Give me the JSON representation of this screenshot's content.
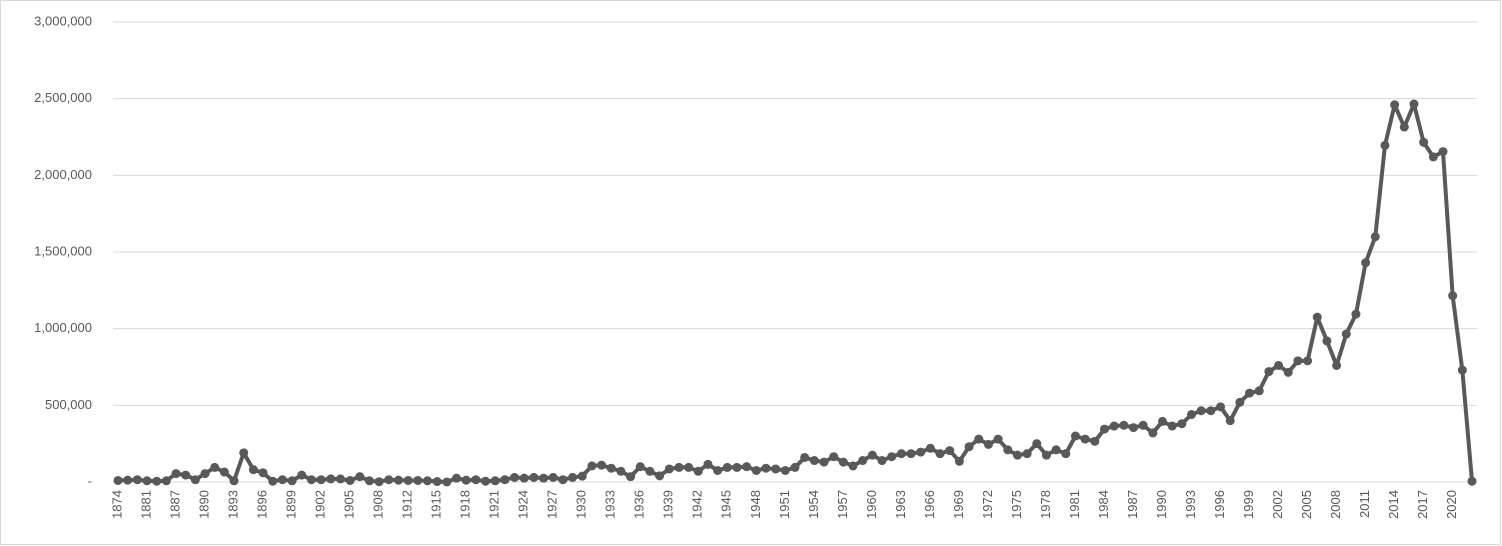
{
  "chart_data": {
    "type": "line",
    "categories": [
      "1874",
      null,
      null,
      "1881",
      null,
      null,
      "1887",
      null,
      null,
      "1890",
      null,
      null,
      "1893",
      null,
      null,
      "1896",
      null,
      null,
      "1899",
      null,
      null,
      "1902",
      null,
      null,
      "1905",
      null,
      null,
      "1908",
      null,
      null,
      "1912",
      null,
      null,
      "1915",
      null,
      null,
      "1918",
      null,
      null,
      "1921",
      null,
      null,
      "1924",
      null,
      null,
      "1927",
      null,
      null,
      "1930",
      null,
      null,
      "1933",
      null,
      null,
      "1936",
      null,
      null,
      "1939",
      null,
      null,
      "1942",
      null,
      null,
      "1945",
      null,
      null,
      "1948",
      null,
      null,
      "1951",
      null,
      null,
      "1954",
      null,
      null,
      "1957",
      null,
      null,
      "1960",
      null,
      null,
      "1963",
      null,
      null,
      "1966",
      null,
      null,
      "1969",
      null,
      null,
      "1972",
      null,
      null,
      "1975",
      null,
      null,
      "1978",
      null,
      null,
      "1981",
      null,
      null,
      "1984",
      null,
      null,
      "1987",
      null,
      null,
      "1990",
      null,
      null,
      "1993",
      null,
      null,
      "1996",
      null,
      null,
      "1999",
      null,
      null,
      "2002",
      null,
      null,
      "2005",
      null,
      null,
      "2008",
      null,
      null,
      "2011",
      null,
      null,
      "2014",
      null,
      null,
      "2017",
      null,
      null,
      "2020",
      null,
      null
    ],
    "values": [
      10000,
      12000,
      15000,
      8000,
      5000,
      8000,
      55000,
      45000,
      15000,
      55000,
      95000,
      65000,
      8000,
      190000,
      80000,
      60000,
      5000,
      15000,
      8000,
      45000,
      15000,
      15000,
      20000,
      20000,
      10000,
      35000,
      8000,
      2000,
      15000,
      12000,
      10000,
      10000,
      8000,
      3000,
      0,
      25000,
      12000,
      15000,
      5000,
      8000,
      15000,
      30000,
      25000,
      30000,
      25000,
      30000,
      15000,
      30000,
      38000,
      105000,
      110000,
      90000,
      70000,
      35000,
      100000,
      70000,
      40000,
      85000,
      95000,
      95000,
      70000,
      115000,
      75000,
      95000,
      95000,
      100000,
      75000,
      90000,
      85000,
      75000,
      95000,
      160000,
      140000,
      130000,
      165000,
      130000,
      105000,
      140000,
      175000,
      140000,
      165000,
      185000,
      185000,
      195000,
      220000,
      185000,
      205000,
      135000,
      230000,
      280000,
      245000,
      280000,
      210000,
      175000,
      185000,
      250000,
      175000,
      210000,
      185000,
      300000,
      280000,
      265000,
      345000,
      365000,
      370000,
      355000,
      370000,
      320000,
      395000,
      365000,
      380000,
      440000,
      465000,
      465000,
      490000,
      400000,
      520000,
      580000,
      595000,
      720000,
      760000,
      715000,
      790000,
      790000,
      1075000,
      920000,
      760000,
      965000,
      1095000,
      1430000,
      1600000,
      2195000,
      2460000,
      2315000,
      2465000,
      2215000,
      2120000,
      2155000,
      1215000,
      730000,
      5000
    ],
    "color": "#595959",
    "ylim": [
      0,
      3000000
    ],
    "yticks": [
      {
        "value": 0,
        "label": "-"
      },
      {
        "value": 500000,
        "label": "500,000"
      },
      {
        "value": 1000000,
        "label": "1,000,000"
      },
      {
        "value": 1500000,
        "label": "1,500,000"
      },
      {
        "value": 2000000,
        "label": "2,000,000"
      },
      {
        "value": 2500000,
        "label": "2,500,000"
      },
      {
        "value": 3000000,
        "label": "3,000,000"
      }
    ],
    "grid": true
  }
}
